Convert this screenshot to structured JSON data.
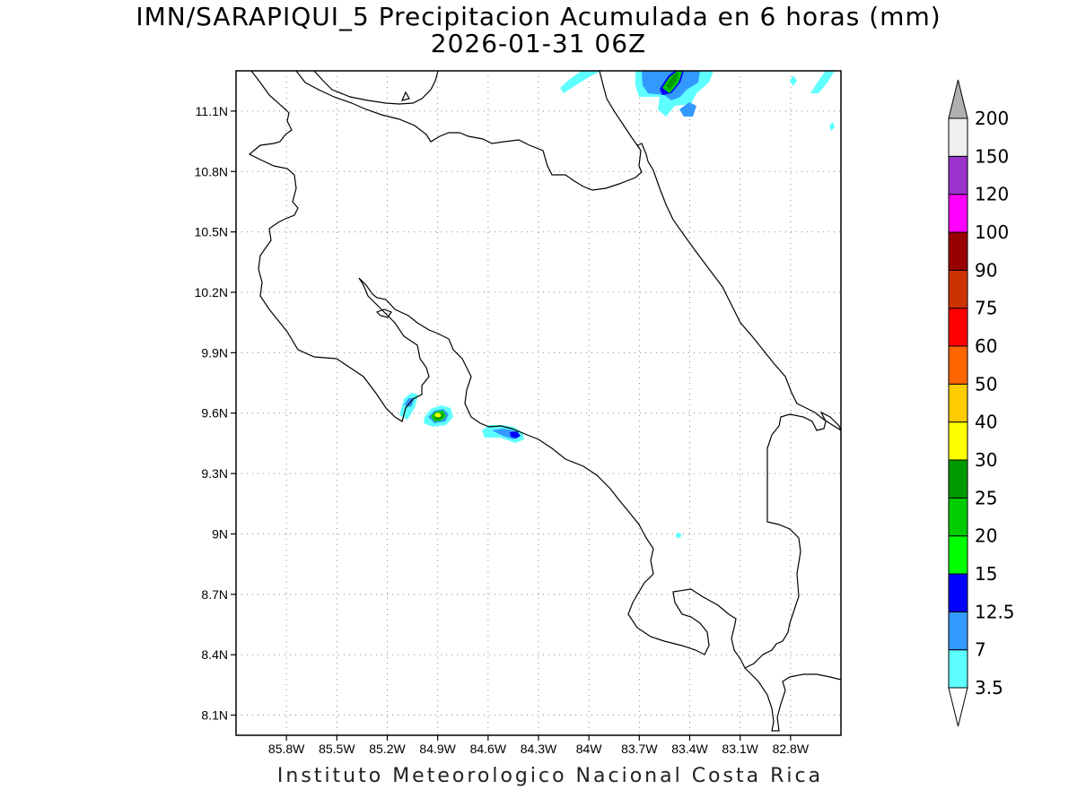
{
  "title": {
    "line1": "IMN/SARAPIQUI_5 Precipitacion Acumulada en 6 horas (mm)",
    "line2": "2026-01-31 06Z"
  },
  "footer": "Instituto Meteorologico Nacional Costa Rica",
  "map": {
    "lon_range": [
      -86.1,
      -82.5
    ],
    "lat_range": [
      8.0,
      11.3
    ],
    "lat_ticks": [
      {
        "value": 11.1,
        "label": "11.1N"
      },
      {
        "value": 10.8,
        "label": "10.8N"
      },
      {
        "value": 10.5,
        "label": "10.5N"
      },
      {
        "value": 10.2,
        "label": "10.2N"
      },
      {
        "value": 9.9,
        "label": "9.9N"
      },
      {
        "value": 9.6,
        "label": "9.6N"
      },
      {
        "value": 9.3,
        "label": "9.3N"
      },
      {
        "value": 9.0,
        "label": "9N"
      },
      {
        "value": 8.7,
        "label": "8.7N"
      },
      {
        "value": 8.4,
        "label": "8.4N"
      },
      {
        "value": 8.1,
        "label": "8.1N"
      }
    ],
    "lon_ticks": [
      {
        "value": -85.8,
        "label": "85.8W"
      },
      {
        "value": -85.5,
        "label": "85.5W"
      },
      {
        "value": -85.2,
        "label": "85.2W"
      },
      {
        "value": -84.9,
        "label": "84.9W"
      },
      {
        "value": -84.6,
        "label": "84.6W"
      },
      {
        "value": -84.3,
        "label": "84.3W"
      },
      {
        "value": -84.0,
        "label": "84W"
      },
      {
        "value": -83.7,
        "label": "83.7W"
      },
      {
        "value": -83.4,
        "label": "83.4W"
      },
      {
        "value": -83.1,
        "label": "83.1W"
      },
      {
        "value": -82.8,
        "label": "82.8W"
      }
    ],
    "grid": "dotted"
  },
  "colorbar": {
    "levels": [
      {
        "label": "3.5",
        "color": "#5effff"
      },
      {
        "label": "7",
        "color": "#3399ff"
      },
      {
        "label": "12.5",
        "color": "#0000ff"
      },
      {
        "label": "15",
        "color": "#00ff00"
      },
      {
        "label": "20",
        "color": "#00cc00"
      },
      {
        "label": "25",
        "color": "#009900"
      },
      {
        "label": "30",
        "color": "#ffff00"
      },
      {
        "label": "40",
        "color": "#ffcc00"
      },
      {
        "label": "50",
        "color": "#ff6600"
      },
      {
        "label": "60",
        "color": "#ff0000"
      },
      {
        "label": "75",
        "color": "#cc3300"
      },
      {
        "label": "90",
        "color": "#990000"
      },
      {
        "label": "100",
        "color": "#ff00ff"
      },
      {
        "label": "120",
        "color": "#9933cc"
      },
      {
        "label": "150",
        "color": "#f0f0f0"
      },
      {
        "label": "200",
        "color": "#b0b0b0"
      }
    ]
  }
}
